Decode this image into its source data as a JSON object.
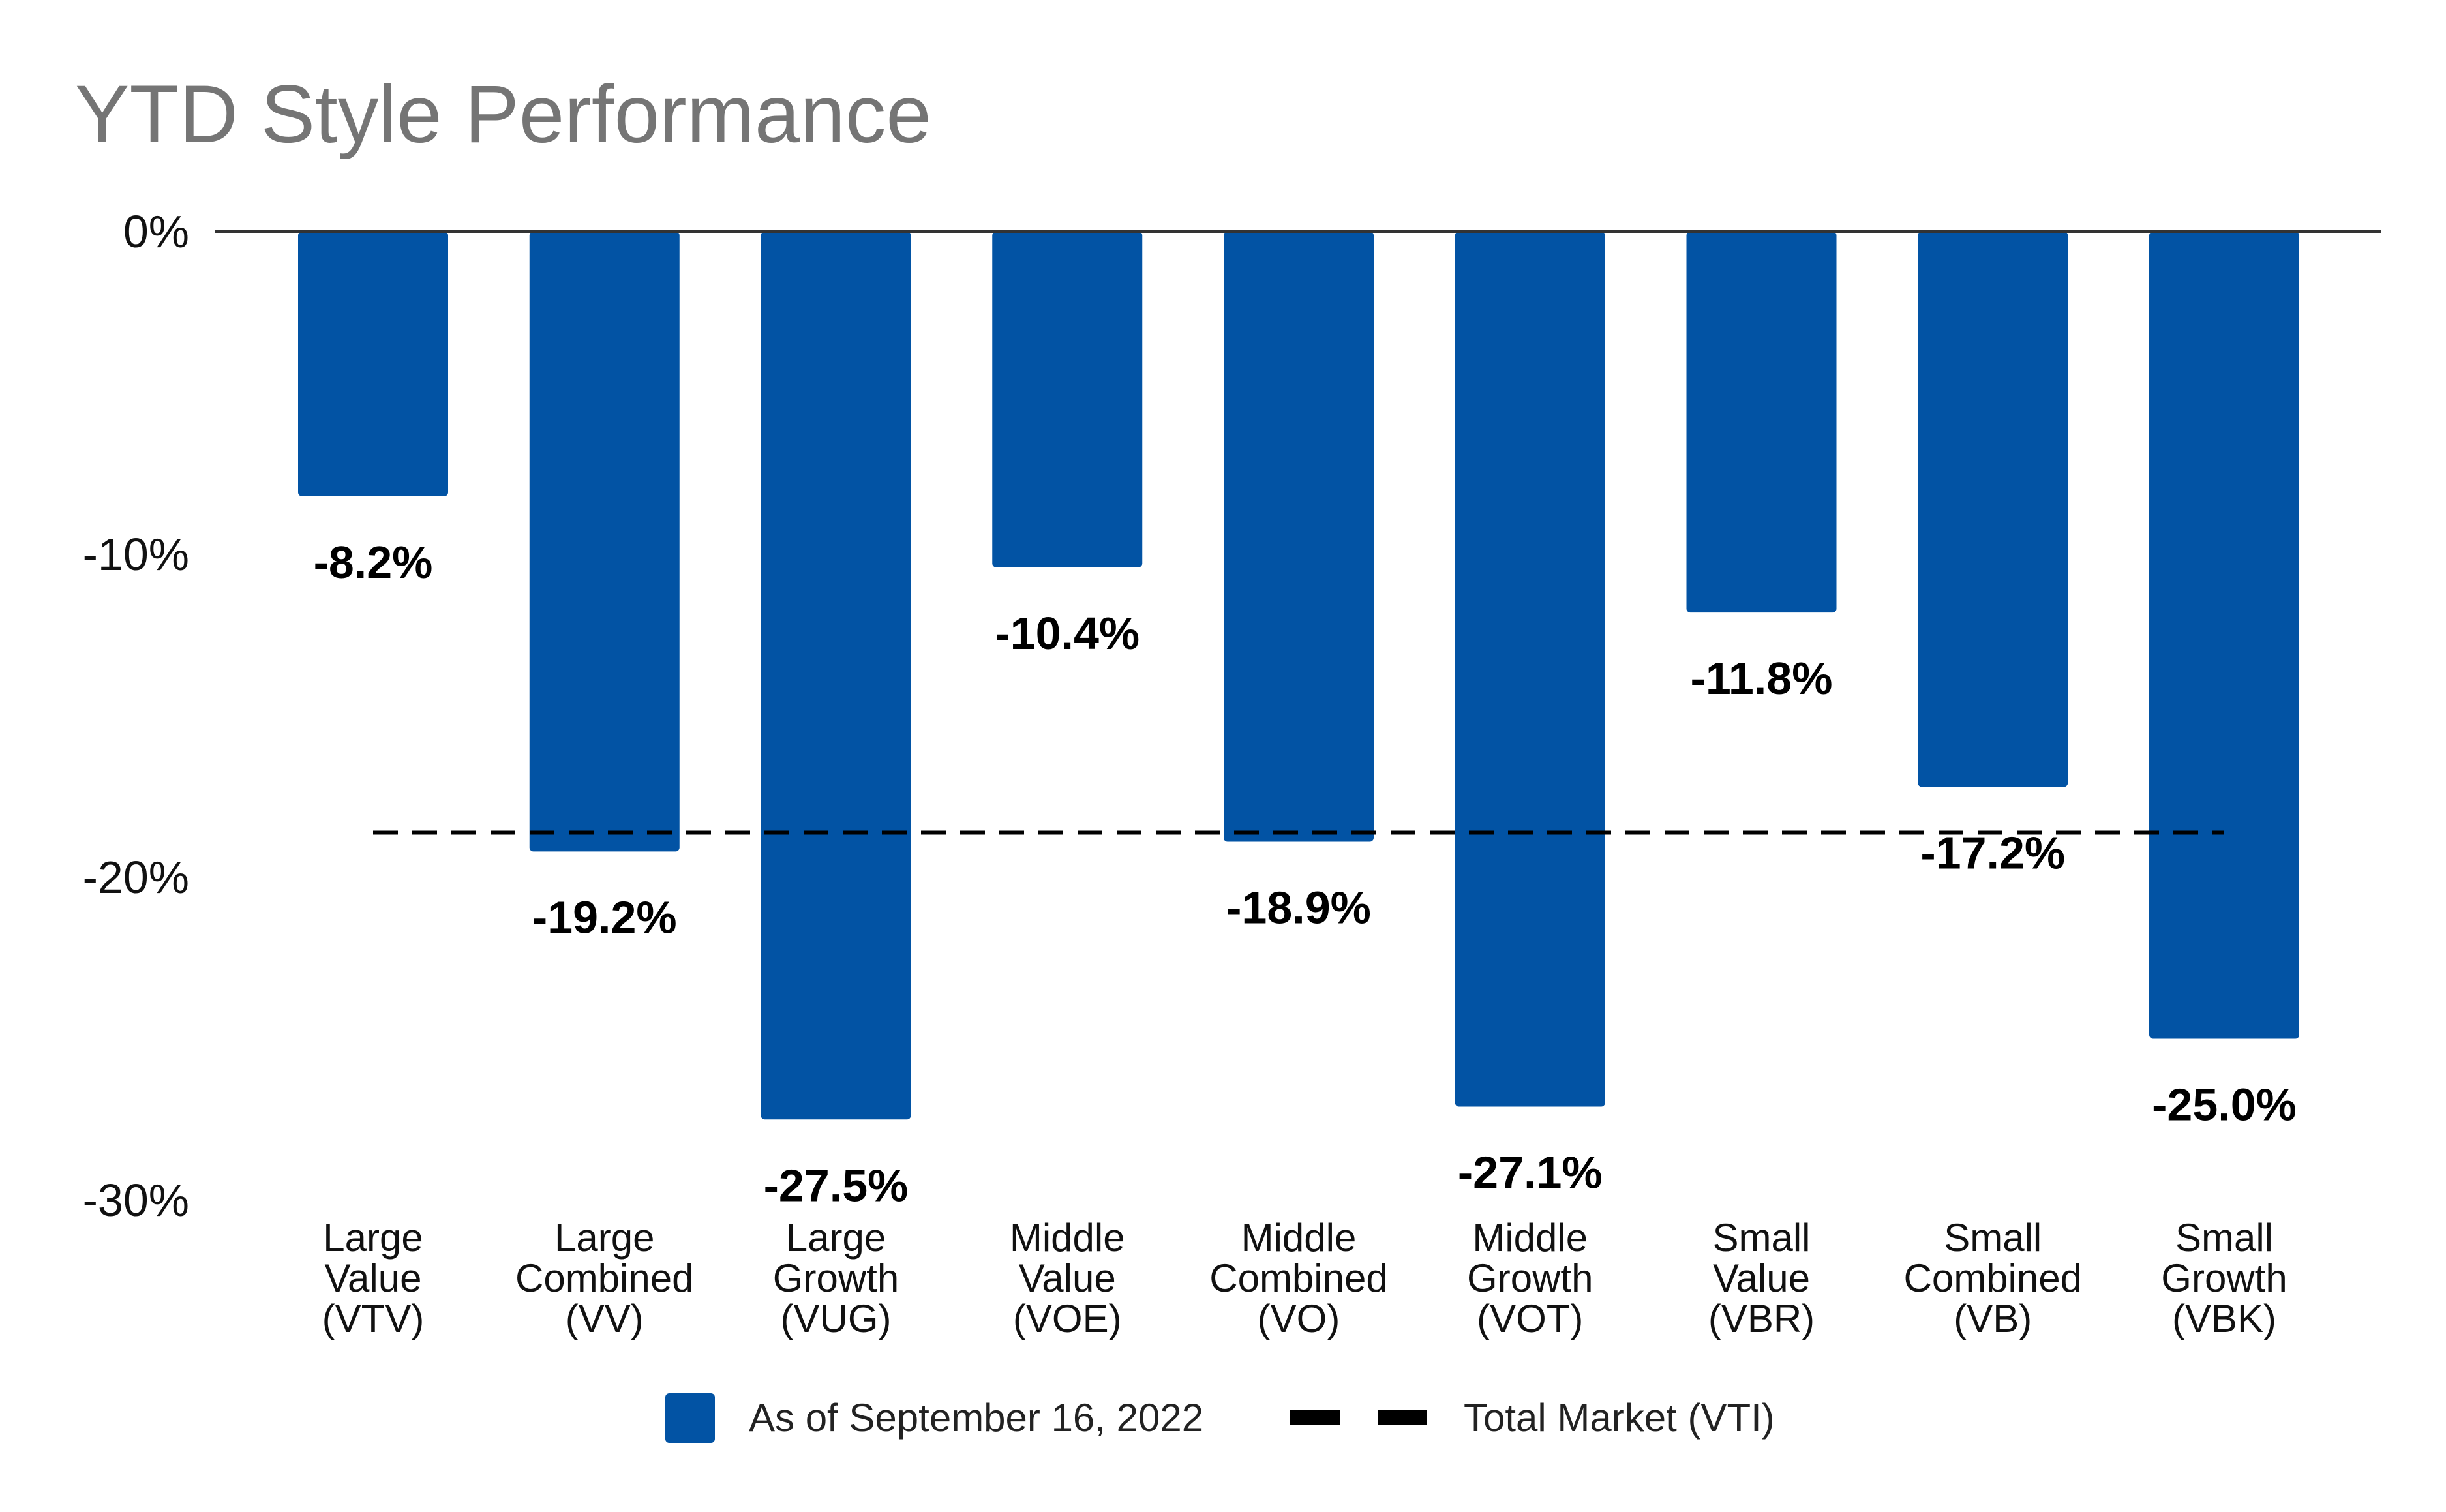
{
  "chart_data": {
    "type": "bar",
    "title": "YTD Style Performance",
    "categories": [
      [
        "Large",
        "Value",
        "(VTV)"
      ],
      [
        "Large",
        "Combined",
        "(VV)"
      ],
      [
        "Large",
        "Growth",
        "(VUG)"
      ],
      [
        "Middle",
        "Value",
        "(VOE)"
      ],
      [
        "Middle",
        "Combined",
        "(VO)"
      ],
      [
        "Middle",
        "Growth",
        "(VOT)"
      ],
      [
        "Small",
        "Value",
        "(VBR)"
      ],
      [
        "Small",
        "Combined",
        "(VB)"
      ],
      [
        "Small",
        "Growth",
        "(VBK)"
      ]
    ],
    "series": [
      {
        "name": "As of September 16, 2022",
        "color": "#0253A4",
        "values": [
          -8.2,
          -19.2,
          -27.5,
          -10.4,
          -18.9,
          -27.1,
          -11.8,
          -17.2,
          -25.0
        ],
        "labels": [
          "-8.2%",
          "-19.2%",
          "-27.5%",
          "-10.4%",
          "-18.9%",
          "-27.1%",
          "-11.8%",
          "-17.2%",
          "-25.0%"
        ]
      }
    ],
    "reference_line": {
      "name": "Total Market (VTI)",
      "value": -18.9,
      "style": "dashed",
      "color": "#000000"
    },
    "y_ticks": [
      0,
      -10,
      -20,
      -30
    ],
    "y_tick_labels": [
      "0%",
      "-10%",
      "-20%",
      "-30%"
    ],
    "ylim": [
      -30,
      0
    ],
    "xlabel": "",
    "ylabel": "",
    "grid": false,
    "legend_position": "bottom-center"
  }
}
